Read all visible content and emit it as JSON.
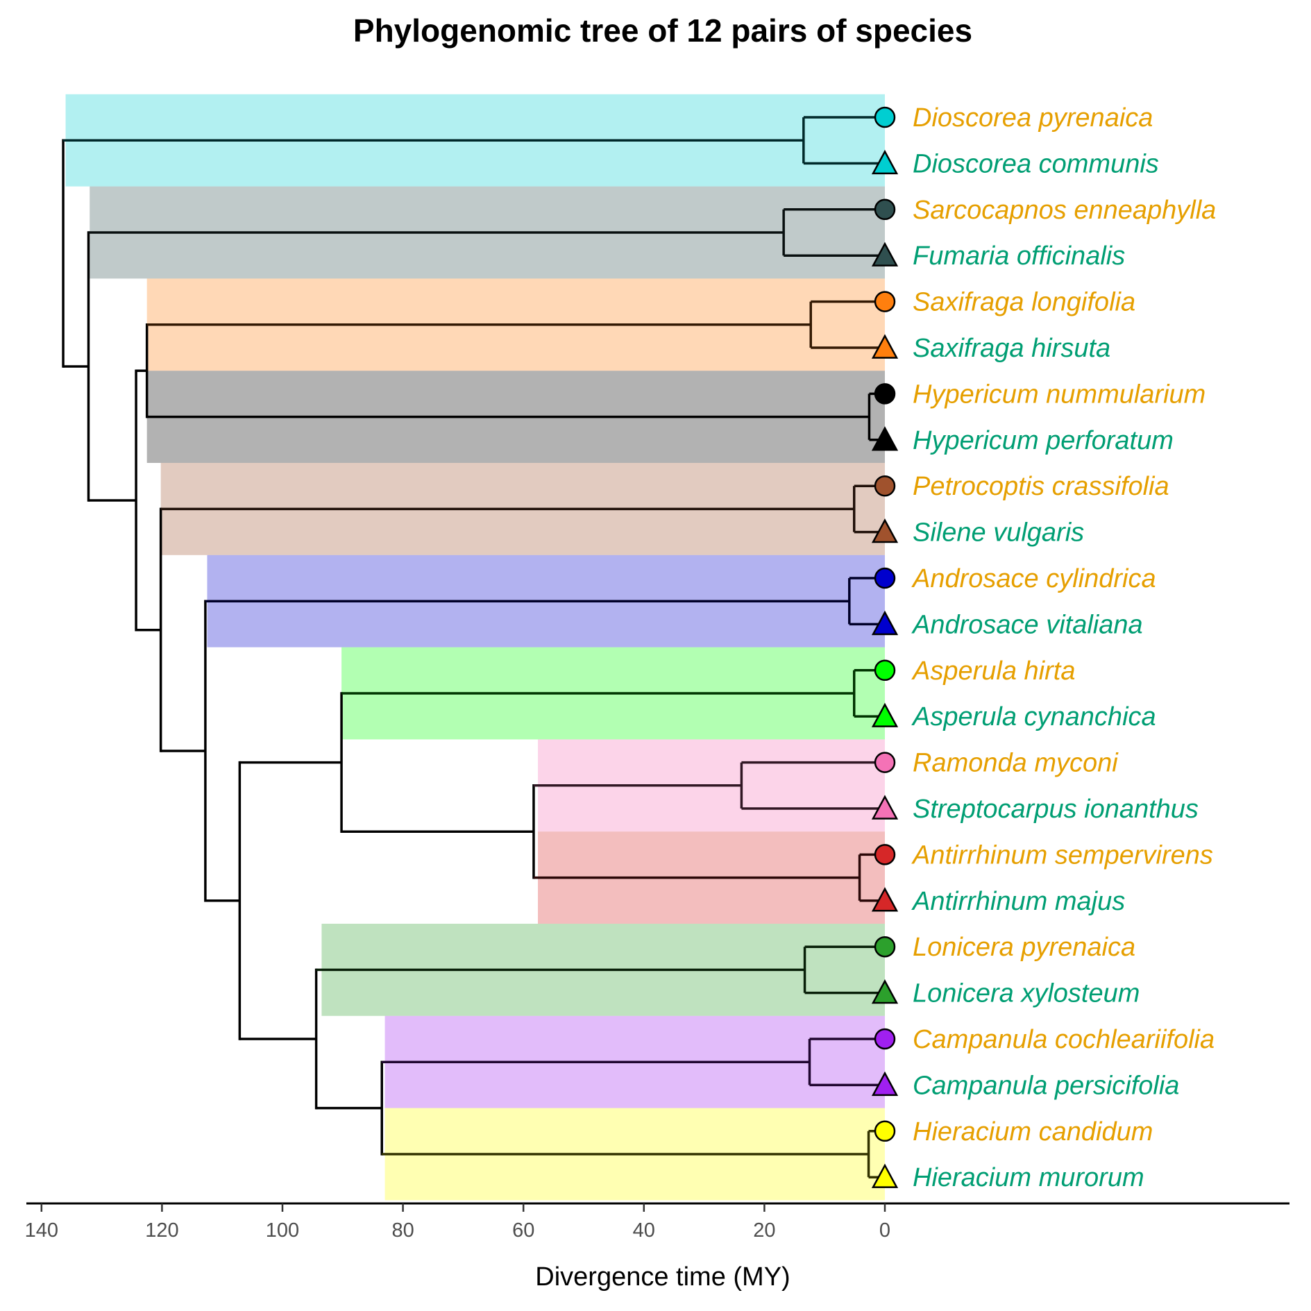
{
  "chart_data": {
    "type": "phylogenetic tree",
    "title": "Phylogenomic tree of 12 pairs of species",
    "xlabel": "Divergence time (MY)",
    "xlim": [
      140,
      0
    ],
    "x_ticks": [
      "140",
      "120",
      "100",
      "80",
      "60",
      "40",
      "20",
      "0"
    ],
    "x_tick_values": [
      140,
      120,
      100,
      80,
      60,
      40,
      20,
      0
    ],
    "grid": false,
    "label_colors": {
      "circle": "#E69F00",
      "triangle": "#009E73"
    },
    "clades": [
      {
        "color": "#00CED1",
        "highlight_age": 136,
        "node_age": 13.5,
        "tips": [
          {
            "name": "Dioscorea pyrenaica",
            "shape": "circle"
          },
          {
            "name": "Dioscorea communis",
            "shape": "triangle"
          }
        ]
      },
      {
        "color": "#2F4F4F",
        "highlight_age": 132,
        "node_age": 16.8,
        "tips": [
          {
            "name": "Sarcocapnos enneaphylla",
            "shape": "circle"
          },
          {
            "name": "Fumaria officinalis",
            "shape": "triangle"
          }
        ]
      },
      {
        "color": "#FF7F0E",
        "highlight_age": 122.5,
        "node_age": 12.3,
        "tips": [
          {
            "name": "Saxifraga longifolia",
            "shape": "circle"
          },
          {
            "name": "Saxifraga hirsuta",
            "shape": "triangle"
          }
        ]
      },
      {
        "color": "#000000",
        "highlight_age": 122.5,
        "node_age": 2.6,
        "tips": [
          {
            "name": "Hypericum nummularium",
            "shape": "circle"
          },
          {
            "name": "Hypericum perforatum",
            "shape": "triangle"
          }
        ]
      },
      {
        "color": "#A0522D",
        "highlight_age": 120.2,
        "node_age": 5.1,
        "tips": [
          {
            "name": "Petrocoptis crassifolia",
            "shape": "circle"
          },
          {
            "name": "Silene vulgaris",
            "shape": "triangle"
          }
        ]
      },
      {
        "color": "#0000CD",
        "highlight_age": 112.5,
        "node_age": 5.9,
        "tips": [
          {
            "name": "Androsace cylindrica",
            "shape": "circle"
          },
          {
            "name": "Androsace vitaliana",
            "shape": "triangle"
          }
        ]
      },
      {
        "color": "#00FF00",
        "highlight_age": 90.2,
        "node_age": 5.1,
        "tips": [
          {
            "name": "Asperula hirta",
            "shape": "circle"
          },
          {
            "name": "Asperula cynanchica",
            "shape": "triangle"
          }
        ]
      },
      {
        "color": "#F472B6",
        "highlight_age": 57.6,
        "node_age": 23.8,
        "tips": [
          {
            "name": "Ramonda myconi",
            "shape": "circle"
          },
          {
            "name": "Streptocarpus ionanthus",
            "shape": "triangle"
          }
        ]
      },
      {
        "color": "#D62728",
        "highlight_age": 57.6,
        "node_age": 4.2,
        "tips": [
          {
            "name": "Antirrhinum sempervirens",
            "shape": "circle"
          },
          {
            "name": "Antirrhinum majus",
            "shape": "triangle"
          }
        ]
      },
      {
        "color": "#2CA02C",
        "highlight_age": 93.5,
        "node_age": 13.3,
        "tips": [
          {
            "name": "Lonicera pyrenaica",
            "shape": "circle"
          },
          {
            "name": "Lonicera xylosteum",
            "shape": "triangle"
          }
        ]
      },
      {
        "color": "#A020F0",
        "highlight_age": 83,
        "node_age": 12.5,
        "tips": [
          {
            "name": "Campanula cochleariifolia",
            "shape": "circle"
          },
          {
            "name": "Campanula persicifolia",
            "shape": "triangle"
          }
        ]
      },
      {
        "color": "#FFFF00",
        "highlight_age": 83,
        "node_age": 2.7,
        "tips": [
          {
            "name": "Hieracium candidum",
            "shape": "circle"
          },
          {
            "name": "Hieracium murorum",
            "shape": "triangle"
          }
        ]
      }
    ],
    "internal_nodes": [
      {
        "id": "n_root",
        "age": 136.4,
        "children": [
          "c0",
          "n_a"
        ]
      },
      {
        "id": "n_a",
        "age": 132.2,
        "children": [
          "c1",
          "n_b"
        ]
      },
      {
        "id": "n_b",
        "age": 124.3,
        "children": [
          "n_c",
          "n_d"
        ]
      },
      {
        "id": "n_c",
        "age": 122.5,
        "children": [
          "c2",
          "c3"
        ]
      },
      {
        "id": "n_d",
        "age": 120.2,
        "children": [
          "c4",
          "n_e"
        ]
      },
      {
        "id": "n_e",
        "age": 112.8,
        "children": [
          "c5",
          "n_f"
        ]
      },
      {
        "id": "n_f",
        "age": 107.1,
        "children": [
          "n_g",
          "n_j"
        ]
      },
      {
        "id": "n_g",
        "age": 90.2,
        "children": [
          "c6",
          "n_h"
        ]
      },
      {
        "id": "n_h",
        "age": 58.3,
        "children": [
          "c7",
          "c8"
        ]
      },
      {
        "id": "n_j",
        "age": 94.4,
        "children": [
          "c9",
          "n_k"
        ]
      },
      {
        "id": "n_k",
        "age": 83.5,
        "children": [
          "c10",
          "c11"
        ]
      }
    ]
  }
}
